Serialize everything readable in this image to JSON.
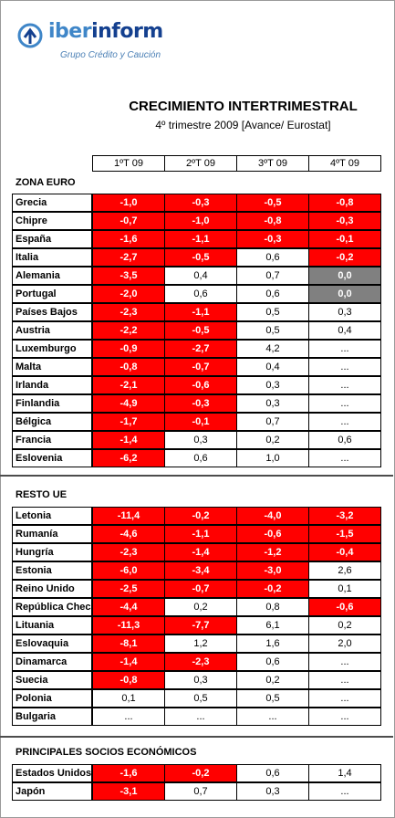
{
  "brand": {
    "name_part1": "iber",
    "name_part2": "inform",
    "tagline": "Grupo Crédito y Caución"
  },
  "title": "CRECIMIENTO INTERTRIMESTRAL",
  "subtitle": "4º trimestre 2009 [Avance/ Eurostat]",
  "columns": [
    "1ºT 09",
    "2ºT 09",
    "3ºT 09",
    "4ºT 09"
  ],
  "colors": {
    "negative": "#ff0000",
    "zero": "#808080"
  },
  "sections": [
    {
      "title": "ZONA EURO",
      "rows": [
        {
          "name": "Grecia",
          "values": [
            "-1,0",
            "-0,3",
            "-0,5",
            "-0,8"
          ]
        },
        {
          "name": "Chipre",
          "values": [
            "-0,7",
            "-1,0",
            "-0,8",
            "-0,3"
          ]
        },
        {
          "name": "España",
          "values": [
            "-1,6",
            "-1,1",
            "-0,3",
            "-0,1"
          ]
        },
        {
          "name": "Italia",
          "values": [
            "-2,7",
            "-0,5",
            "0,6",
            "-0,2"
          ]
        },
        {
          "name": "Alemania",
          "values": [
            "-3,5",
            "0,4",
            "0,7",
            "0,0"
          ]
        },
        {
          "name": "Portugal",
          "values": [
            "-2,0",
            "0,6",
            "0,6",
            "0,0"
          ]
        },
        {
          "name": "Países Bajos",
          "values": [
            "-2,3",
            "-1,1",
            "0,5",
            "0,3"
          ]
        },
        {
          "name": "Austria",
          "values": [
            "-2,2",
            "-0,5",
            "0,5",
            "0,4"
          ]
        },
        {
          "name": "Luxemburgo",
          "values": [
            "-0,9",
            "-2,7",
            "4,2",
            "..."
          ]
        },
        {
          "name": "Malta",
          "values": [
            "-0,8",
            "-0,7",
            "0,4",
            "..."
          ]
        },
        {
          "name": "Irlanda",
          "values": [
            "-2,1",
            "-0,6",
            "0,3",
            "..."
          ]
        },
        {
          "name": "Finlandia",
          "values": [
            "-4,9",
            "-0,3",
            "0,3",
            "..."
          ]
        },
        {
          "name": "Bélgica",
          "values": [
            "-1,7",
            "-0,1",
            "0,7",
            "..."
          ]
        },
        {
          "name": "Francia",
          "values": [
            "-1,4",
            "0,3",
            "0,2",
            "0,6"
          ]
        },
        {
          "name": "Eslovenia",
          "values": [
            "-6,2",
            "0,6",
            "1,0",
            "..."
          ]
        }
      ]
    },
    {
      "title": "RESTO UE",
      "rows": [
        {
          "name": "Letonia",
          "values": [
            "-11,4",
            "-0,2",
            "-4,0",
            "-3,2"
          ]
        },
        {
          "name": "Rumanía",
          "values": [
            "-4,6",
            "-1,1",
            "-0,6",
            "-1,5"
          ]
        },
        {
          "name": "Hungría",
          "values": [
            "-2,3",
            "-1,4",
            "-1,2",
            "-0,4"
          ]
        },
        {
          "name": "Estonia",
          "values": [
            "-6,0",
            "-3,4",
            "-3,0",
            "2,6"
          ]
        },
        {
          "name": "Reino Unido",
          "values": [
            "-2,5",
            "-0,7",
            "-0,2",
            "0,1"
          ]
        },
        {
          "name": "República Checa",
          "values": [
            "-4,4",
            "0,2",
            "0,8",
            "-0,6"
          ]
        },
        {
          "name": "Lituania",
          "values": [
            "-11,3",
            "-7,7",
            "6,1",
            "0,2"
          ]
        },
        {
          "name": "Eslovaquia",
          "values": [
            "-8,1",
            "1,2",
            "1,6",
            "2,0"
          ]
        },
        {
          "name": "Dinamarca",
          "values": [
            "-1,4",
            "-2,3",
            "0,6",
            "..."
          ]
        },
        {
          "name": "Suecia",
          "values": [
            "-0,8",
            "0,3",
            "0,2",
            "..."
          ]
        },
        {
          "name": "Polonia",
          "values": [
            "0,1",
            "0,5",
            "0,5",
            "..."
          ]
        },
        {
          "name": "Bulgaria",
          "values": [
            "...",
            "...",
            "...",
            "..."
          ]
        }
      ]
    },
    {
      "title": "PRINCIPALES SOCIOS ECONÓMICOS",
      "rows": [
        {
          "name": "Estados Unidos",
          "values": [
            "-1,6",
            "-0,2",
            "0,6",
            "1,4"
          ]
        },
        {
          "name": "Japón",
          "values": [
            "-3,1",
            "0,7",
            "0,3",
            "..."
          ]
        }
      ]
    }
  ]
}
